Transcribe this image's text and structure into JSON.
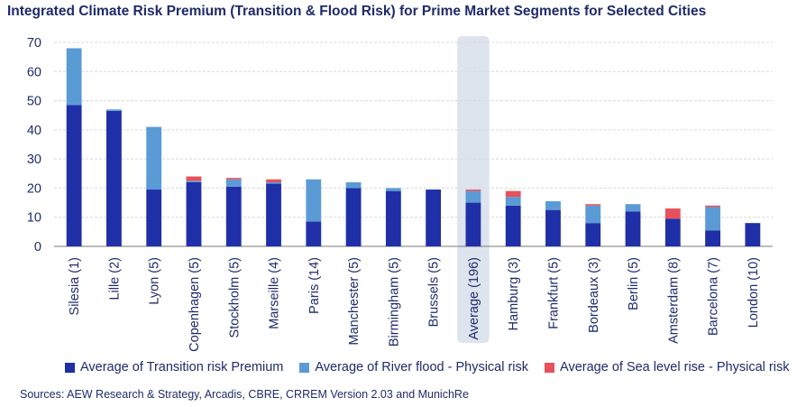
{
  "chart_data": {
    "type": "bar",
    "stacked": true,
    "title": "Integrated Climate Risk Premium (Transition & Flood Risk) for Prime Market Segments for Selected Cities",
    "xlabel": "",
    "ylabel": "",
    "ylim": [
      0,
      70
    ],
    "yticks": [
      0,
      10,
      20,
      30,
      40,
      50,
      60,
      70
    ],
    "grid": true,
    "legend_position": "bottom",
    "highlighted_category": "Average (196)",
    "categories": [
      "Silesia (1)",
      "Lille (2)",
      "Lyon (5)",
      "Copenhagen (5)",
      "Stockholm (5)",
      "Marseille (4)",
      "Paris (14)",
      "Manchester (5)",
      "Birmingham (5)",
      "Brussels (5)",
      "Average (196)",
      "Hamburg (3)",
      "Frankfurt (5)",
      "Bordeaux (3)",
      "Berlin (5)",
      "Amsterdam (8)",
      "Barcelona (7)",
      "London (10)"
    ],
    "series": [
      {
        "name": "Average of Transition risk Premium",
        "color": "#1f2fa8",
        "values": [
          48.5,
          46.5,
          19.5,
          22,
          20.5,
          21.5,
          8.5,
          20,
          19,
          19.5,
          15,
          14,
          12.5,
          8,
          12,
          9.5,
          5.5,
          8
        ]
      },
      {
        "name": "Average of River flood - Physical risk",
        "color": "#5b9bd5",
        "values": [
          19.5,
          0.5,
          21.5,
          0.5,
          2.5,
          0.5,
          14.5,
          2,
          1,
          0,
          4,
          3,
          3,
          6,
          2.5,
          0,
          8,
          0
        ]
      },
      {
        "name": "Average of Sea level rise - Physical risk",
        "color": "#e8505b",
        "values": [
          0,
          0,
          0,
          1.5,
          0.5,
          1,
          0,
          0,
          0,
          0,
          0.5,
          2,
          0,
          0.5,
          0,
          3.5,
          0.5,
          0
        ]
      }
    ]
  },
  "source": "Sources: AEW Research & Strategy, Arcadis, CBRE, CRREM Version 2.03 and MunichRe"
}
